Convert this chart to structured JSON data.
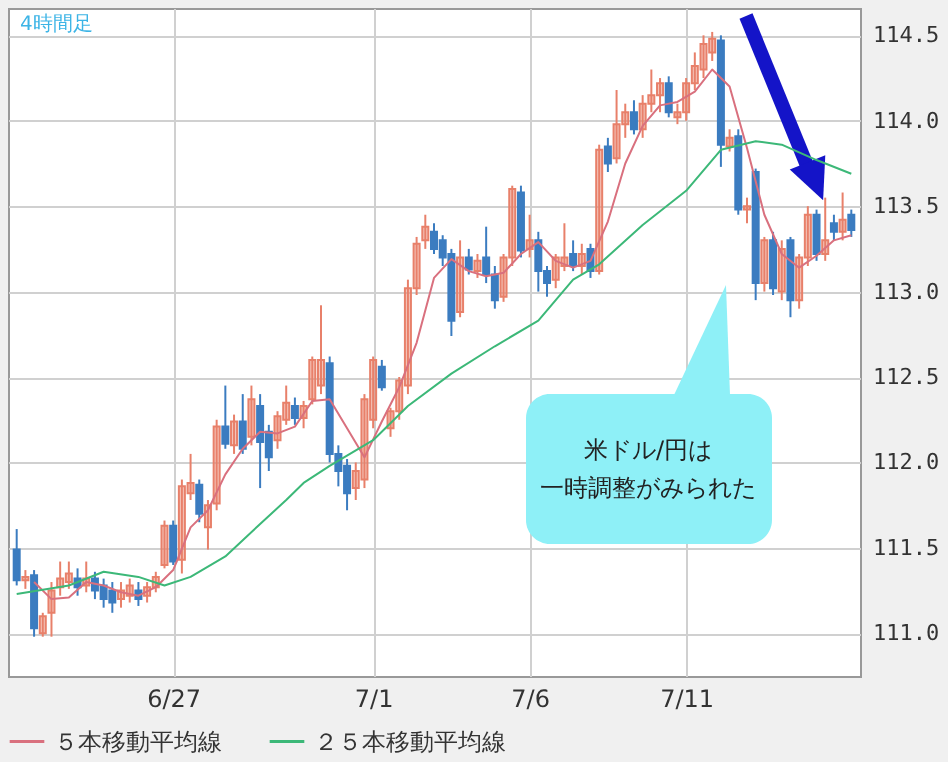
{
  "chart_data": {
    "type": "candlestick",
    "title": "4時間足",
    "categories": [
      null,
      null,
      null,
      null,
      null,
      null,
      null,
      null,
      null,
      null,
      null,
      null,
      null,
      null,
      null,
      null,
      null,
      null,
      "6/27",
      null,
      null,
      null,
      null,
      null,
      null,
      null,
      null,
      null,
      null,
      null,
      null,
      null,
      null,
      null,
      null,
      null,
      null,
      null,
      null,
      null,
      null,
      "7/1",
      null,
      null,
      null,
      null,
      null,
      null,
      null,
      null,
      null,
      null,
      null,
      null,
      null,
      null,
      null,
      null,
      null,
      "7/6",
      null,
      null,
      null,
      null,
      null,
      null,
      null,
      null,
      null,
      null,
      null,
      null,
      null,
      null,
      null,
      null,
      null,
      "7/11",
      null,
      null,
      null,
      null,
      null,
      null,
      null,
      null,
      null,
      null,
      null,
      null,
      null,
      null,
      null,
      null,
      null,
      null,
      null
    ],
    "ohlc": [
      [
        111.49,
        111.61,
        111.28,
        111.31
      ],
      [
        111.31,
        111.37,
        111.26,
        111.33
      ],
      [
        111.34,
        111.37,
        110.98,
        111.03
      ],
      [
        111.0,
        111.12,
        110.98,
        111.1
      ],
      [
        111.12,
        111.3,
        110.98,
        111.25
      ],
      [
        111.27,
        111.42,
        111.22,
        111.32
      ],
      [
        111.3,
        111.42,
        111.26,
        111.35
      ],
      [
        111.32,
        111.38,
        111.22,
        111.27
      ],
      [
        111.28,
        111.42,
        111.24,
        111.32
      ],
      [
        111.32,
        111.36,
        111.2,
        111.25
      ],
      [
        111.28,
        111.32,
        111.15,
        111.2
      ],
      [
        111.25,
        111.3,
        111.12,
        111.18
      ],
      [
        111.2,
        111.3,
        111.15,
        111.25
      ],
      [
        111.22,
        111.32,
        111.18,
        111.28
      ],
      [
        111.25,
        111.3,
        111.16,
        111.2
      ],
      [
        111.22,
        111.3,
        111.18,
        111.27
      ],
      [
        111.27,
        111.36,
        111.24,
        111.33
      ],
      [
        111.4,
        111.66,
        111.38,
        111.63
      ],
      [
        111.63,
        111.66,
        111.4,
        111.42
      ],
      [
        111.43,
        111.9,
        111.35,
        111.86
      ],
      [
        111.82,
        112.05,
        111.78,
        111.88
      ],
      [
        111.87,
        111.9,
        111.65,
        111.7
      ],
      [
        111.62,
        111.78,
        111.49,
        111.75
      ],
      [
        111.76,
        112.25,
        111.72,
        112.21
      ],
      [
        112.21,
        112.45,
        112.08,
        112.11
      ],
      [
        112.1,
        112.28,
        112.05,
        112.24
      ],
      [
        112.24,
        112.4,
        112.05,
        112.08
      ],
      [
        112.15,
        112.45,
        112.1,
        112.37
      ],
      [
        112.33,
        112.4,
        111.85,
        112.12
      ],
      [
        112.18,
        112.22,
        111.95,
        112.03
      ],
      [
        112.13,
        112.3,
        112.08,
        112.27
      ],
      [
        112.25,
        112.45,
        112.22,
        112.35
      ],
      [
        112.33,
        112.38,
        112.22,
        112.26
      ],
      [
        112.26,
        112.36,
        112.2,
        112.33
      ],
      [
        112.37,
        112.62,
        112.34,
        112.6
      ],
      [
        112.45,
        112.92,
        112.4,
        112.6
      ],
      [
        112.58,
        112.62,
        112.0,
        112.05
      ],
      [
        112.05,
        112.1,
        111.86,
        111.95
      ],
      [
        111.98,
        112.02,
        111.72,
        111.82
      ],
      [
        111.85,
        112.0,
        111.78,
        111.95
      ],
      [
        111.9,
        112.4,
        111.85,
        112.37
      ],
      [
        112.25,
        112.62,
        112.2,
        112.6
      ],
      [
        112.56,
        112.6,
        112.42,
        112.44
      ],
      [
        112.2,
        112.32,
        112.15,
        112.3
      ],
      [
        112.3,
        112.5,
        112.25,
        112.48
      ],
      [
        112.45,
        113.07,
        112.4,
        113.02
      ],
      [
        113.02,
        113.32,
        112.98,
        113.28
      ],
      [
        113.3,
        113.45,
        113.25,
        113.38
      ],
      [
        113.35,
        113.4,
        113.22,
        113.25
      ],
      [
        113.3,
        113.33,
        113.15,
        113.2
      ],
      [
        113.22,
        113.25,
        112.74,
        112.83
      ],
      [
        112.88,
        113.3,
        112.85,
        113.2
      ],
      [
        113.2,
        113.25,
        113.1,
        113.13
      ],
      [
        113.12,
        113.22,
        113.08,
        113.18
      ],
      [
        113.2,
        113.38,
        113.05,
        113.1
      ],
      [
        113.1,
        113.15,
        112.9,
        112.95
      ],
      [
        112.97,
        113.22,
        112.94,
        113.2
      ],
      [
        113.2,
        113.62,
        113.15,
        113.6
      ],
      [
        113.58,
        113.62,
        113.2,
        113.24
      ],
      [
        113.25,
        113.45,
        113.2,
        113.3
      ],
      [
        113.3,
        113.35,
        113.0,
        113.12
      ],
      [
        113.12,
        113.15,
        112.97,
        113.05
      ],
      [
        113.07,
        113.22,
        113.02,
        113.2
      ],
      [
        113.15,
        113.4,
        113.12,
        113.2
      ],
      [
        113.22,
        113.3,
        113.12,
        113.15
      ],
      [
        113.15,
        113.28,
        113.1,
        113.22
      ],
      [
        113.25,
        113.28,
        113.08,
        113.12
      ],
      [
        113.12,
        113.86,
        113.1,
        113.83
      ],
      [
        113.85,
        113.9,
        113.7,
        113.75
      ],
      [
        113.78,
        114.18,
        113.75,
        113.98
      ],
      [
        113.98,
        114.1,
        113.9,
        114.05
      ],
      [
        114.05,
        114.12,
        113.92,
        113.95
      ],
      [
        113.95,
        114.15,
        113.9,
        114.1
      ],
      [
        114.1,
        114.3,
        114.05,
        114.15
      ],
      [
        114.15,
        114.25,
        114.05,
        114.22
      ],
      [
        114.22,
        114.26,
        114.02,
        114.05
      ],
      [
        114.02,
        114.1,
        113.98,
        114.05
      ],
      [
        114.05,
        114.25,
        114.0,
        114.22
      ],
      [
        114.22,
        114.4,
        114.18,
        114.32
      ],
      [
        114.3,
        114.5,
        114.25,
        114.45
      ],
      [
        114.4,
        114.52,
        114.35,
        114.48
      ],
      [
        114.47,
        114.5,
        113.73,
        113.86
      ],
      [
        113.85,
        113.95,
        113.82,
        113.9
      ],
      [
        113.91,
        113.95,
        113.45,
        113.48
      ],
      [
        113.48,
        113.55,
        113.4,
        113.5
      ],
      [
        113.7,
        113.72,
        112.95,
        113.05
      ],
      [
        113.05,
        113.32,
        113.0,
        113.3
      ],
      [
        113.3,
        113.35,
        112.98,
        113.02
      ],
      [
        113.0,
        113.3,
        112.95,
        113.25
      ],
      [
        113.3,
        113.32,
        112.85,
        112.95
      ],
      [
        112.95,
        113.22,
        112.9,
        113.2
      ],
      [
        113.2,
        113.5,
        113.15,
        113.45
      ],
      [
        113.45,
        113.48,
        113.18,
        113.22
      ],
      [
        113.22,
        113.55,
        113.18,
        113.3
      ],
      [
        113.4,
        113.45,
        113.3,
        113.35
      ],
      [
        113.35,
        113.58,
        113.3,
        113.42
      ],
      [
        113.45,
        113.48,
        113.32,
        113.36
      ]
    ],
    "colors": [
      "#3b7cc0",
      "#e8806a",
      "#3b7cc0",
      "#e8806a",
      "#e8806a",
      "#e8806a",
      "#e8806a",
      "#3b7cc0",
      "#e8806a",
      "#3b7cc0",
      "#3b7cc0",
      "#3b7cc0",
      "#e8806a",
      "#e8806a",
      "#3b7cc0",
      "#e8806a",
      "#e8806a",
      "#e8806a",
      "#3b7cc0",
      "#e8806a",
      "#e8806a",
      "#3b7cc0",
      "#e8806a",
      "#e8806a",
      "#3b7cc0",
      "#e8806a",
      "#3b7cc0",
      "#e8806a",
      "#3b7cc0",
      "#3b7cc0",
      "#e8806a",
      "#e8806a",
      "#3b7cc0",
      "#e8806a",
      "#e8806a",
      "#e8806a",
      "#3b7cc0",
      "#3b7cc0",
      "#3b7cc0",
      "#e8806a",
      "#e8806a",
      "#e8806a",
      "#3b7cc0",
      "#e8806a",
      "#e8806a",
      "#e8806a",
      "#e8806a",
      "#e8806a",
      "#3b7cc0",
      "#3b7cc0",
      "#3b7cc0",
      "#e8806a",
      "#3b7cc0",
      "#e8806a",
      "#3b7cc0",
      "#3b7cc0",
      "#e8806a",
      "#e8806a",
      "#3b7cc0",
      "#e8806a",
      "#3b7cc0",
      "#3b7cc0",
      "#e8806a",
      "#e8806a",
      "#3b7cc0",
      "#e8806a",
      "#3b7cc0",
      "#e8806a",
      "#3b7cc0",
      "#e8806a",
      "#e8806a",
      "#3b7cc0",
      "#e8806a",
      "#e8806a",
      "#e8806a",
      "#3b7cc0",
      "#e8806a",
      "#e8806a",
      "#e8806a",
      "#e8806a",
      "#e8806a",
      "#3b7cc0",
      "#e8806a",
      "#3b7cc0",
      "#e8806a",
      "#3b7cc0",
      "#e8806a",
      "#3b7cc0",
      "#e8806a",
      "#3b7cc0",
      "#e8806a",
      "#e8806a",
      "#3b7cc0",
      "#e8806a",
      "#3b7cc0",
      "#e8806a",
      "#3b7cc0"
    ],
    "series": [
      {
        "name": "５本移動平均線",
        "type": "line",
        "color": "#d9707e",
        "values": [
          null,
          null,
          111.3,
          null,
          111.2,
          null,
          111.21,
          null,
          111.3,
          null,
          111.28,
          null,
          111.24,
          null,
          111.22,
          null,
          111.27,
          null,
          111.37,
          null,
          111.62,
          null,
          111.72,
          null,
          111.93,
          null,
          112.08,
          null,
          112.18,
          null,
          112.17,
          null,
          112.21,
          null,
          112.36,
          null,
          112.37,
          null,
          112.2,
          null,
          112.03,
          null,
          112.24,
          null,
          112.44,
          null,
          112.7,
          null,
          113.08,
          null,
          113.19,
          null,
          113.12,
          null,
          113.09,
          null,
          113.11,
          null,
          113.22,
          null,
          113.29,
          null,
          113.18,
          null,
          113.14,
          null,
          113.18,
          null,
          113.41,
          null,
          113.75,
          null,
          113.97,
          null,
          114.09,
          null,
          114.11,
          null,
          114.17,
          null,
          114.3,
          null,
          114.2,
          null,
          113.84,
          null,
          113.45,
          null,
          113.22,
          null,
          113.14,
          null,
          113.21,
          null,
          113.3,
          null,
          113.33
        ]
      },
      {
        "name": "２５本移動平均線",
        "type": "line",
        "color": "#3cb878",
        "values": [
          111.23,
          null,
          null,
          null,
          null,
          null,
          111.28,
          null,
          null,
          null,
          111.36,
          null,
          null,
          null,
          111.33,
          null,
          null,
          111.28,
          null,
          null,
          111.33,
          null,
          null,
          null,
          111.45,
          null,
          null,
          null,
          111.64,
          null,
          null,
          111.78,
          null,
          111.88,
          null,
          null,
          111.98,
          null,
          null,
          null,
          null,
          112.13,
          null,
          null,
          null,
          112.33,
          null,
          null,
          null,
          null,
          112.52,
          null,
          null,
          null,
          null,
          112.68,
          null,
          null,
          null,
          null,
          112.83,
          null,
          null,
          null,
          113.07,
          null,
          null,
          113.16,
          null,
          null,
          null,
          null,
          113.39,
          null,
          null,
          null,
          null,
          113.59,
          null,
          null,
          null,
          113.83,
          null,
          null,
          null,
          113.88,
          null,
          null,
          113.86,
          null,
          null,
          null,
          113.77,
          null,
          null,
          null,
          113.69
        ]
      }
    ],
    "ylim": [
      110.75,
      114.66
    ],
    "yticks": [
      {
        "value": 111,
        "label": "111.0"
      },
      111.5,
      {
        "value": 112,
        "label": "112.0"
      },
      112.5,
      {
        "value": 113,
        "label": "113.0"
      },
      113.5,
      {
        "value": 114,
        "label": "114.0"
      },
      114.5
    ],
    "grid": true,
    "legend": "bottom",
    "annotations": [
      "米ドル/円は",
      "一時調整がみられた"
    ]
  }
}
